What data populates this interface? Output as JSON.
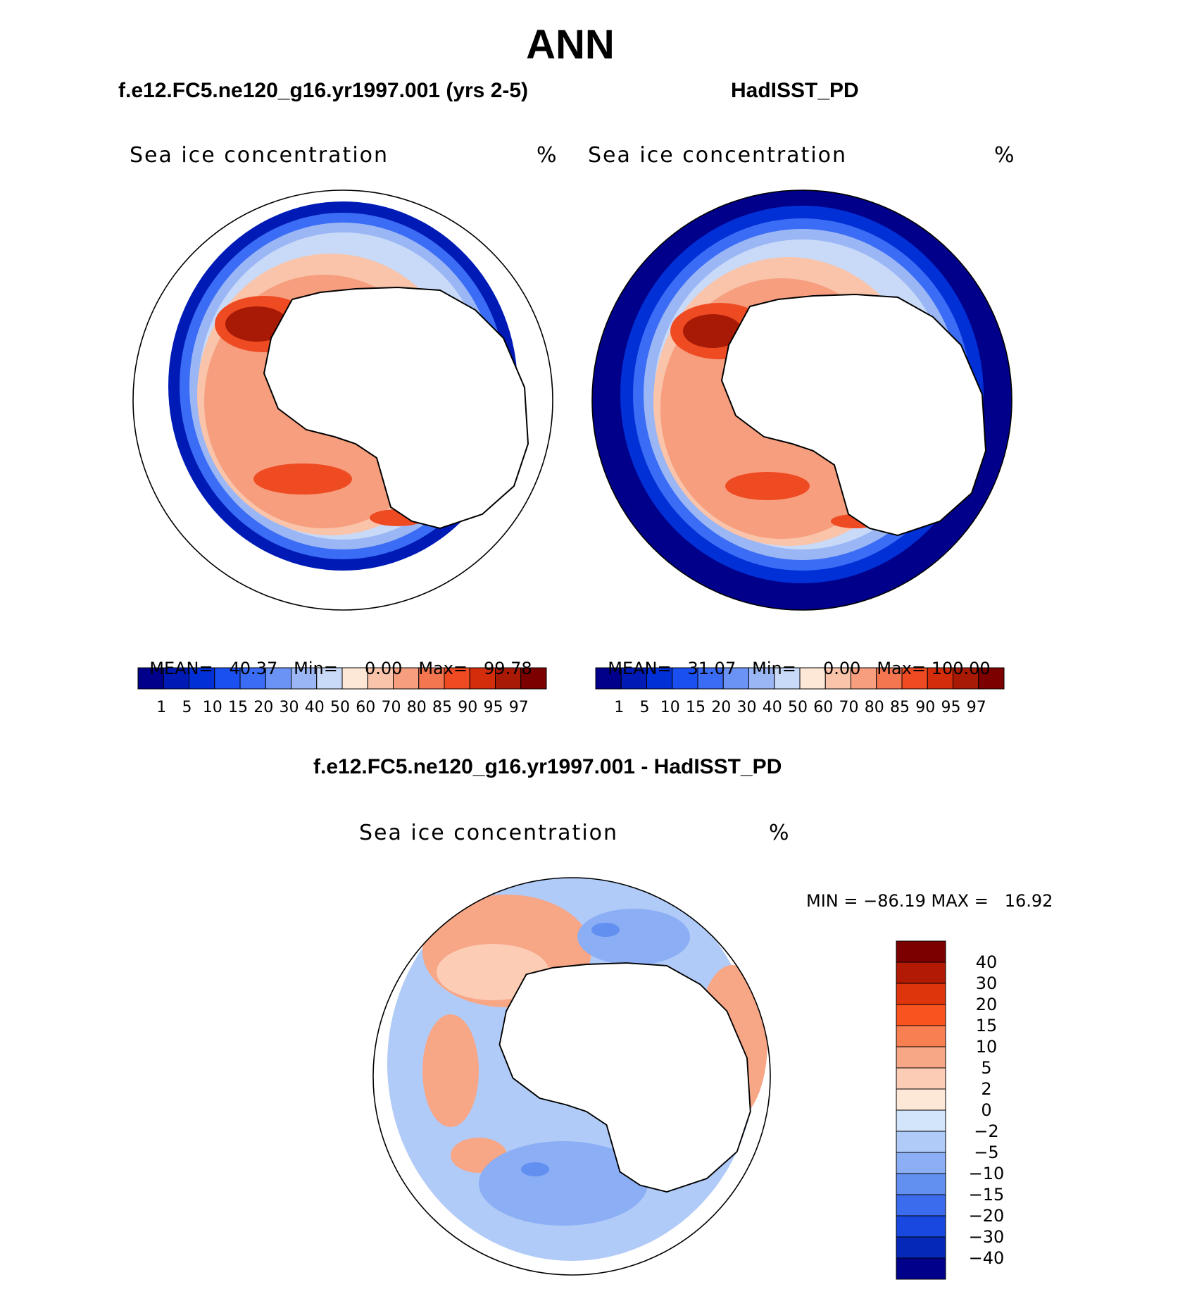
{
  "figure": {
    "title": "ANN",
    "bottom_title": "f.e12.FC5.ne120_g16.yr1997.001 - HadISST_PD"
  },
  "panels": [
    {
      "title": "f.e12.FC5.ne120_g16.yr1997.001 (yrs 2-5)",
      "variable": "Sea ice concentration",
      "units": "%",
      "stats": {
        "mean_label": "MEAN=",
        "mean": "40.37",
        "min_label": "Min=",
        "min": "0.00",
        "max_label": "Max=",
        "max": "99.78"
      }
    },
    {
      "title": "HadISST_PD",
      "variable": "Sea ice concentration",
      "units": "%",
      "stats": {
        "mean_label": "MEAN=",
        "mean": "31.07",
        "min_label": "Min=",
        "min": "0.00",
        "max_label": "Max=",
        "max": "100.00"
      }
    }
  ],
  "diff_panel": {
    "variable": "Sea ice concentration",
    "units": "%",
    "minmax": "MIN = −86.19 MAX =   16.92"
  },
  "colorbars": {
    "concentration": {
      "labels": [
        "1",
        "5",
        "10",
        "15",
        "20",
        "30",
        "40",
        "50",
        "60",
        "70",
        "80",
        "85",
        "90",
        "95",
        "97"
      ],
      "colors": [
        "#00008b",
        "#001bb5",
        "#0030d6",
        "#1a4ff0",
        "#3a6cf5",
        "#6b92f5",
        "#9bb6f5",
        "#c8daf8",
        "#fde8d8",
        "#f9c4aa",
        "#f69e7e",
        "#f47650",
        "#ef4b23",
        "#d42d0c",
        "#a81a06",
        "#7c0000"
      ]
    },
    "difference": {
      "labels": [
        "40",
        "30",
        "20",
        "15",
        "10",
        "5",
        "2",
        "0",
        "−2",
        "−5",
        "−10",
        "−15",
        "−20",
        "−30",
        "−40"
      ],
      "colors": [
        "#7c0000",
        "#b21a06",
        "#df350c",
        "#f9541f",
        "#f77f52",
        "#f7a686",
        "#fcccb4",
        "#fde8d8",
        "#d3e5fa",
        "#b1cbf8",
        "#8baef5",
        "#6290f0",
        "#3b6ced",
        "#1848e0",
        "#0528b8",
        "#00008b"
      ]
    }
  }
}
